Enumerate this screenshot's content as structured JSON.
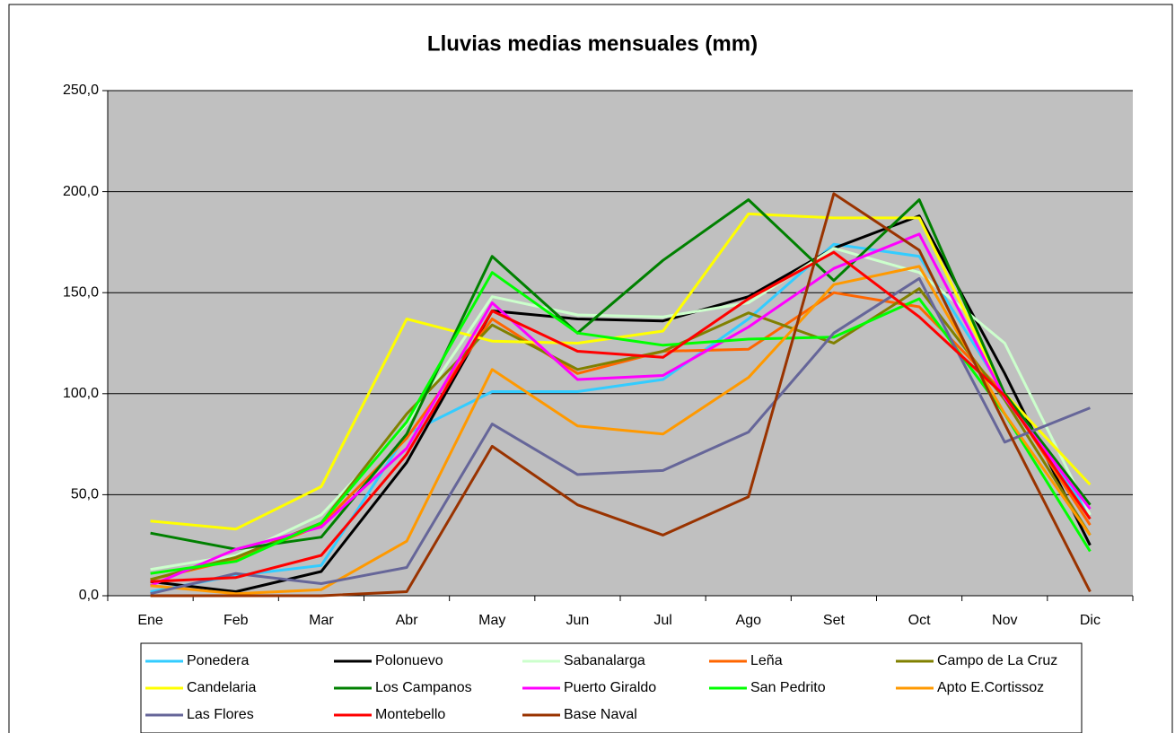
{
  "chart_data": {
    "type": "line",
    "title": "Lluvias medias mensuales (mm)",
    "categories": [
      "Ene",
      "Feb",
      "Mar",
      "Abr",
      "May",
      "Jun",
      "Jul",
      "Ago",
      "Set",
      "Oct",
      "Nov",
      "Dic"
    ],
    "ylim": [
      0,
      250
    ],
    "yticks": [
      {
        "value": 0,
        "label": "0,0"
      },
      {
        "value": 50,
        "label": "50,0"
      },
      {
        "value": 100,
        "label": "100,0"
      },
      {
        "value": 150,
        "label": "150,0"
      },
      {
        "value": 200,
        "label": "200,0"
      },
      {
        "value": 250,
        "label": "250,0"
      }
    ],
    "grid": true,
    "series": [
      {
        "name": "Ponedera",
        "color": "#33CCFF",
        "values": [
          2,
          10,
          15,
          80,
          101,
          101,
          107,
          137,
          174,
          168,
          100,
          40
        ]
      },
      {
        "name": "Polonuevo",
        "color": "#000000",
        "values": [
          7,
          2,
          12,
          66,
          141,
          137,
          136,
          148,
          172,
          188,
          110,
          25
        ]
      },
      {
        "name": "Sabanalarga",
        "color": "#CCFFCC",
        "values": [
          13,
          20,
          40,
          85,
          148,
          139,
          138,
          145,
          172,
          160,
          125,
          40
        ]
      },
      {
        "name": "Leña",
        "color": "#FF6600",
        "values": [
          8,
          18,
          35,
          78,
          137,
          110,
          121,
          122,
          150,
          143,
          100,
          35
        ]
      },
      {
        "name": "Campo de La Cruz",
        "color": "#808000",
        "values": [
          8,
          19,
          36,
          90,
          134,
          112,
          121,
          140,
          125,
          152,
          97,
          30
        ]
      },
      {
        "name": "Candelaria",
        "color": "#FFFF00",
        "values": [
          37,
          33,
          54,
          137,
          126,
          125,
          131,
          189,
          187,
          187,
          100,
          55
        ]
      },
      {
        "name": "Los Campanos",
        "color": "#008000",
        "values": [
          31,
          23,
          29,
          80,
          168,
          130,
          166,
          196,
          156,
          196,
          100,
          45
        ]
      },
      {
        "name": "Puerto Giraldo",
        "color": "#FF00FF",
        "values": [
          5,
          23,
          34,
          73,
          145,
          107,
          109,
          133,
          162,
          179,
          98,
          43
        ]
      },
      {
        "name": "San Pedrito",
        "color": "#00FF00",
        "values": [
          11,
          17,
          36,
          86,
          160,
          130,
          124,
          127,
          128,
          147,
          90,
          22
        ]
      },
      {
        "name": "Apto E.Cortissoz",
        "color": "#FF9900",
        "values": [
          5,
          1,
          3,
          27,
          112,
          84,
          80,
          108,
          154,
          163,
          90,
          30
        ]
      },
      {
        "name": "Las Flores",
        "color": "#666699",
        "values": [
          1,
          11,
          6,
          14,
          85,
          60,
          62,
          81,
          130,
          157,
          76,
          93
        ]
      },
      {
        "name": "Montebello",
        "color": "#FF0000",
        "values": [
          7,
          9,
          20,
          70,
          141,
          121,
          118,
          147,
          170,
          138,
          99,
          38
        ]
      },
      {
        "name": "Base Naval",
        "color": "#993300",
        "values": [
          0,
          0,
          0,
          2,
          74,
          45,
          30,
          49,
          199,
          171,
          85,
          2
        ]
      }
    ]
  }
}
